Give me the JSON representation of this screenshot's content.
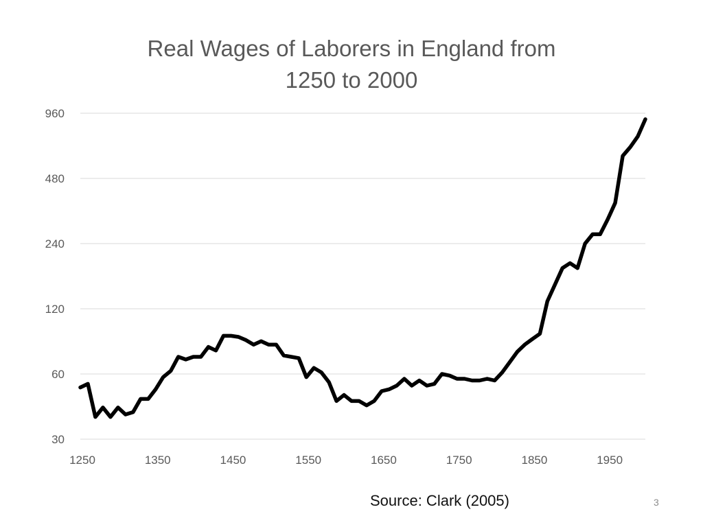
{
  "slide": {
    "source_note": "Source: Clark (2005)",
    "slide_number": "3"
  },
  "colors": {
    "line": "#000000",
    "grid": "#d9d9d9",
    "tick_text": "#595959",
    "title_text": "#595959"
  },
  "chart_data": {
    "type": "line",
    "title": "Real Wages of Laborers in England from\n1250 to 2000",
    "xlabel": "",
    "ylabel": "",
    "y_scale": "log2",
    "xlim": [
      1250,
      2000
    ],
    "ylim": [
      30,
      960
    ],
    "x_ticks": [
      1250,
      1350,
      1450,
      1550,
      1650,
      1750,
      1850,
      1950
    ],
    "y_ticks": [
      30,
      60,
      120,
      240,
      480,
      960
    ],
    "grid": true,
    "legend": "none",
    "series": [
      {
        "x": [
          1250,
          1260,
          1270,
          1280,
          1290,
          1300,
          1310,
          1320,
          1330,
          1340,
          1350,
          1360,
          1370,
          1380,
          1390,
          1400,
          1410,
          1420,
          1430,
          1440,
          1450,
          1460,
          1470,
          1480,
          1490,
          1500,
          1510,
          1520,
          1530,
          1540,
          1550,
          1560,
          1570,
          1580,
          1590,
          1600,
          1610,
          1620,
          1630,
          1640,
          1650,
          1660,
          1670,
          1680,
          1690,
          1700,
          1710,
          1720,
          1730,
          1740,
          1750,
          1760,
          1770,
          1780,
          1790,
          1800,
          1810,
          1820,
          1830,
          1840,
          1850,
          1860,
          1870,
          1880,
          1890,
          1900,
          1910,
          1920,
          1930,
          1940,
          1950,
          1960,
          1970,
          1980,
          1990,
          2000
        ],
        "y": [
          52,
          54,
          38,
          42,
          38,
          42,
          39,
          40,
          46,
          46,
          51,
          58,
          62,
          72,
          70,
          72,
          72,
          80,
          77,
          90,
          90,
          89,
          86,
          82,
          85,
          82,
          82,
          73,
          72,
          71,
          58,
          64,
          61,
          55,
          45,
          48,
          45,
          45,
          43,
          45,
          50,
          51,
          53,
          57,
          53,
          56,
          53,
          54,
          60,
          59,
          57,
          57,
          56,
          56,
          57,
          56,
          61,
          68,
          76,
          82,
          87,
          92,
          130,
          155,
          185,
          195,
          185,
          240,
          265,
          265,
          310,
          370,
          610,
          670,
          750,
          900
        ]
      }
    ]
  }
}
